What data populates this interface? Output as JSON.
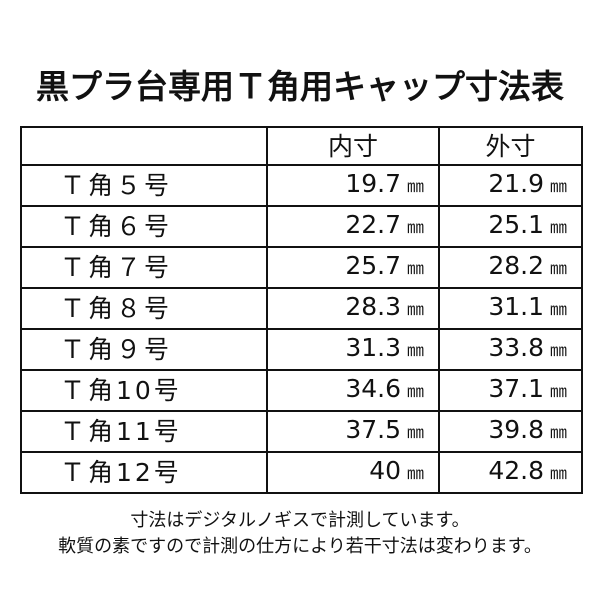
{
  "title": "黒プラ台専用Ｔ角用キャップ寸法表",
  "table": {
    "headers": [
      "",
      "内寸",
      "外寸"
    ],
    "unit": "㎜",
    "rows": [
      {
        "size": "Ｔ角５号",
        "inner": "19.7",
        "outer": "21.9"
      },
      {
        "size": "Ｔ角６号",
        "inner": "22.7",
        "outer": "25.1"
      },
      {
        "size": "Ｔ角７号",
        "inner": "25.7",
        "outer": "28.2"
      },
      {
        "size": "Ｔ角８号",
        "inner": "28.3",
        "outer": "31.1"
      },
      {
        "size": "Ｔ角９号",
        "inner": "31.3",
        "outer": "33.8"
      },
      {
        "size": "Ｔ角10号",
        "inner": "34.6",
        "outer": "37.1"
      },
      {
        "size": "Ｔ角11号",
        "inner": "37.5",
        "outer": "39.8"
      },
      {
        "size": "Ｔ角12号",
        "inner": "40",
        "outer": "42.8"
      }
    ]
  },
  "notes": [
    "寸法はデジタルノギスで計測しています。",
    "軟質の素ですので計測の仕方により若干寸法は変わります。"
  ]
}
